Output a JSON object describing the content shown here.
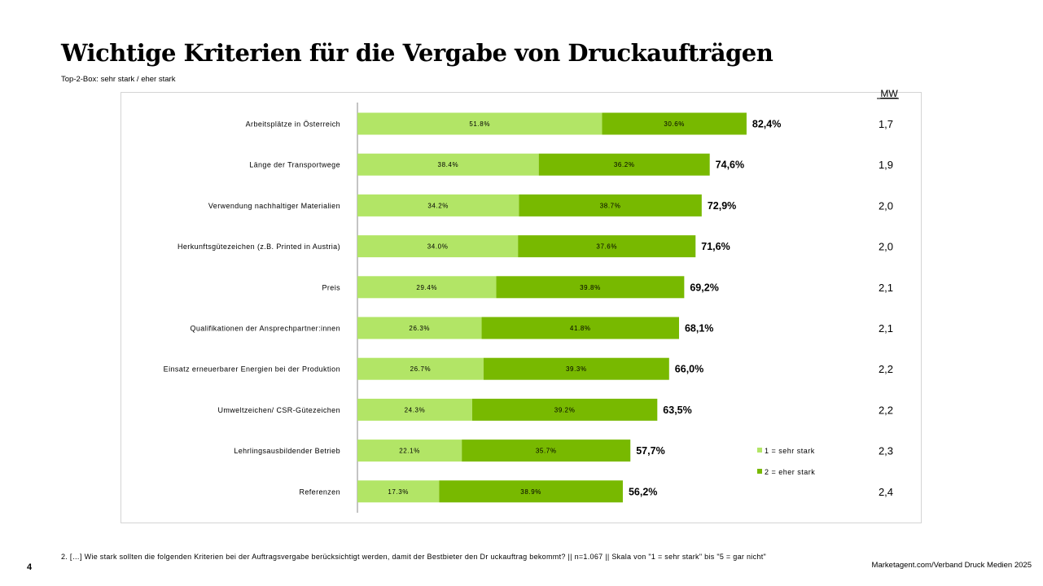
{
  "title": "Wichtige Kriterien für die Vergabe von Druckaufträgen",
  "subtitle": "Top-2-Box: sehr stark / eher stark",
  "footnote": "2. […] Wie stark sollten die folgenden Kriterien bei der Auftragsvergabe berücksichtigt werden, damit der Bestbieter den Dr uckauftrag bekommt? || n=1.067 || Skala von \"1 = sehr stark\" bis \"5 = gar nicht\"",
  "page_number": "4",
  "source": "Marketagent.com/Verband Druck Medien 2025",
  "chart_data": {
    "type": "bar",
    "orientation": "horizontal-stacked",
    "mw_header": "MW",
    "categories": [
      "Arbeitsplätze in Österreich",
      "Länge der Transportwege",
      "Verwendung nachhaltiger Materialien",
      "Herkunftsgütezeichen (z.B. Printed in Austria)",
      "Preis",
      "Qualifikationen der Ansprechpartner:innen",
      "Einsatz erneuerbarer Energien bei der Produktion",
      "Umweltzeichen/ CSR-Gütezeichen",
      "Lehrlingsausbildender Betrieb",
      "Referenzen"
    ],
    "series": [
      {
        "name": "1 = sehr stark",
        "color": "#b2e566",
        "values": [
          51.8,
          38.4,
          34.2,
          34.0,
          29.4,
          26.3,
          26.7,
          24.3,
          22.1,
          17.3
        ],
        "labels": [
          "51.8%",
          "38.4%",
          "34.2%",
          "34.0%",
          "29.4%",
          "26.3%",
          "26.7%",
          "24.3%",
          "22.1%",
          "17.3%"
        ]
      },
      {
        "name": "2 = eher stark",
        "color": "#78b900",
        "values": [
          30.6,
          36.2,
          38.7,
          37.6,
          39.8,
          41.8,
          39.3,
          39.2,
          35.7,
          38.9
        ],
        "labels": [
          "30.6%",
          "36.2%",
          "38.7%",
          "37.6%",
          "39.8%",
          "41.8%",
          "39.3%",
          "39.2%",
          "35.7%",
          "38.9%"
        ]
      }
    ],
    "totals": [
      "82,4%",
      "74,6%",
      "72,9%",
      "71,6%",
      "69,2%",
      "68,1%",
      "66,0%",
      "63,5%",
      "57,7%",
      "56,2%"
    ],
    "mw": [
      "1,7",
      "1,9",
      "2,0",
      "2,0",
      "2,1",
      "2,1",
      "2,2",
      "2,2",
      "2,3",
      "2,4"
    ],
    "legend_position": "bottom-right",
    "xlim": [
      0,
      100
    ]
  }
}
